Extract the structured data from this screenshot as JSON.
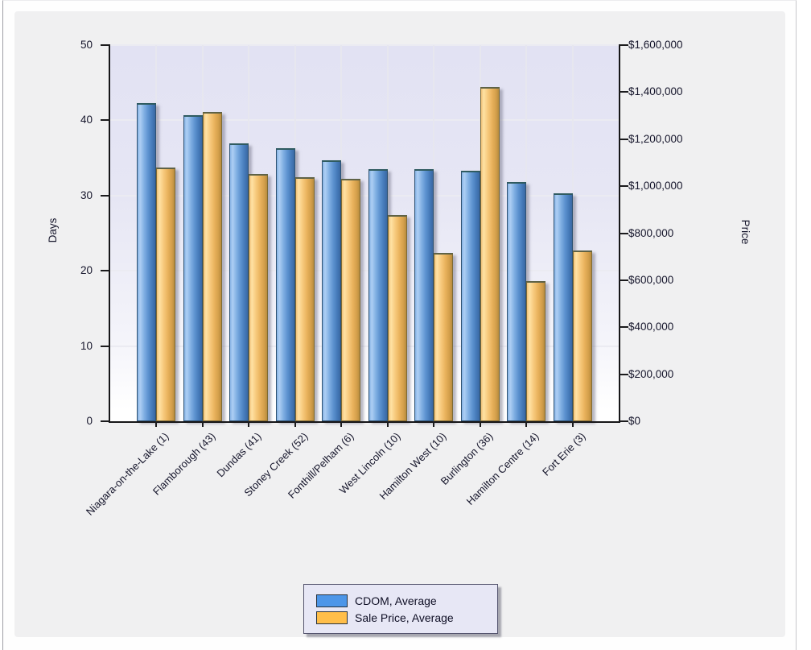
{
  "chart_data": {
    "type": "bar",
    "categories": [
      "Niagara-on-the-Lake (1)",
      "Flamborough (43)",
      "Dundas (41)",
      "Stoney Creek (52)",
      "Fonthill/Pelham (6)",
      "West Lincoln (10)",
      "Hamilton West (10)",
      "Burlington (36)",
      "Hamilton Centre (14)",
      "Fort Erie (3)"
    ],
    "series": [
      {
        "name": "CDOM, Average",
        "axis": "left",
        "unit": "days",
        "color": "#4d96e8",
        "values": [
          42,
          40.4,
          36.6,
          36,
          34.4,
          33.2,
          33.2,
          33,
          31.5,
          30
        ]
      },
      {
        "name": "Sale Price, Average",
        "axis": "right",
        "unit": "dollars",
        "color": "#ffbe4a",
        "values": [
          1069000,
          1306000,
          1041000,
          1028000,
          1021000,
          867000,
          707000,
          1412000,
          586000,
          716000
        ]
      }
    ],
    "left_axis": {
      "label": "Days",
      "min": 0,
      "max": 50,
      "tick_labels": [
        "0",
        "10",
        "20",
        "30",
        "40",
        "50"
      ]
    },
    "right_axis": {
      "label": "Price",
      "min": 0,
      "max": 1600000,
      "tick_labels": [
        "$0",
        "$200,000",
        "$400,000",
        "$600,000",
        "$800,000",
        "$1,000,000",
        "$1,200,000",
        "$1,400,000",
        "$1,600,000"
      ]
    },
    "legend": {
      "position": "bottom-center",
      "entries": [
        "CDOM, Average",
        "Sale Price, Average"
      ]
    },
    "grid": true,
    "plot_background_top": "#e2e2f3",
    "plot_background_bottom": "#ffffff",
    "panel_background": "#f0f0f1"
  }
}
